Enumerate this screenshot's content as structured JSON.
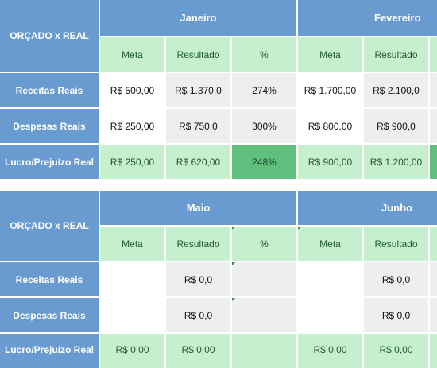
{
  "sections": [
    {
      "corner": "ORÇADO x REAL",
      "months": [
        "Janeiro",
        "Fevereiro"
      ],
      "subheaders": [
        "Meta",
        "Resultado",
        "%",
        "Meta",
        "Resultado"
      ],
      "rows": [
        {
          "label": "Receitas Reais",
          "cells": [
            "R$ 500,00",
            "R$ 1.370,0",
            "274%",
            "R$ 1.700,00",
            "R$ 2.100,0"
          ]
        },
        {
          "label": "Despesas Reais",
          "cells": [
            "R$ 250,00",
            "R$ 750,0",
            "300%",
            "R$ 800,00",
            "R$ 900,0"
          ]
        },
        {
          "label": "Lucro/Prejuízo Real",
          "cells": [
            "R$ 250,00",
            "R$ 620,00",
            "248%",
            "R$ 900,00",
            "R$ 1.200,00"
          ]
        }
      ]
    },
    {
      "corner": "ORÇADO x REAL",
      "months": [
        "Maio",
        "Junho"
      ],
      "subheaders": [
        "Meta",
        "Resultado",
        "%",
        "Meta",
        "Resultado"
      ],
      "rows": [
        {
          "label": "Receitas Reais",
          "cells": [
            "",
            "R$ 0,0",
            "",
            "",
            "R$ 0,0"
          ]
        },
        {
          "label": "Despesas Reais",
          "cells": [
            "",
            "R$ 0,0",
            "",
            "",
            "R$ 0,0"
          ]
        },
        {
          "label": "Lucro/Prejuízo Real",
          "cells": [
            "R$ 0,00",
            "R$ 0,00",
            "",
            "R$ 0,00",
            "R$ 0,00"
          ]
        }
      ]
    }
  ],
  "colors": {
    "header_blue": "#6a9bd0",
    "light_green": "#c6efce",
    "strong_green": "#5fbf7d",
    "grey_cell": "#eceeef"
  }
}
